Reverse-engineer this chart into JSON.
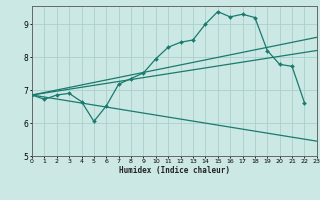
{
  "xlabel": "Humidex (Indice chaleur)",
  "bg_color": "#cce8e4",
  "grid_color": "#aad0cb",
  "line_color": "#1a7a6e",
  "curve": {
    "x": [
      0,
      1,
      2,
      3,
      4,
      5,
      6,
      7,
      8,
      9,
      10,
      11,
      12,
      13,
      14,
      15,
      16,
      17,
      18,
      19,
      20,
      21,
      22
    ],
    "y": [
      6.85,
      6.72,
      6.85,
      6.9,
      6.65,
      6.05,
      6.52,
      7.18,
      7.35,
      7.52,
      7.95,
      8.3,
      8.45,
      8.52,
      9.0,
      9.38,
      9.22,
      9.3,
      9.2,
      8.2,
      7.78,
      7.72,
      6.62
    ]
  },
  "line_upper1": {
    "x": [
      0,
      23
    ],
    "y": [
      6.85,
      8.6
    ]
  },
  "line_upper2": {
    "x": [
      0,
      23
    ],
    "y": [
      6.85,
      8.2
    ]
  },
  "line_lower": {
    "x": [
      0,
      23
    ],
    "y": [
      6.85,
      5.45
    ]
  },
  "xlim": [
    0,
    23
  ],
  "ylim": [
    5.0,
    9.55
  ],
  "yticks": [
    5,
    6,
    7,
    8,
    9
  ],
  "xticks": [
    0,
    1,
    2,
    3,
    4,
    5,
    6,
    7,
    8,
    9,
    10,
    11,
    12,
    13,
    14,
    15,
    16,
    17,
    18,
    19,
    20,
    21,
    22,
    23
  ]
}
